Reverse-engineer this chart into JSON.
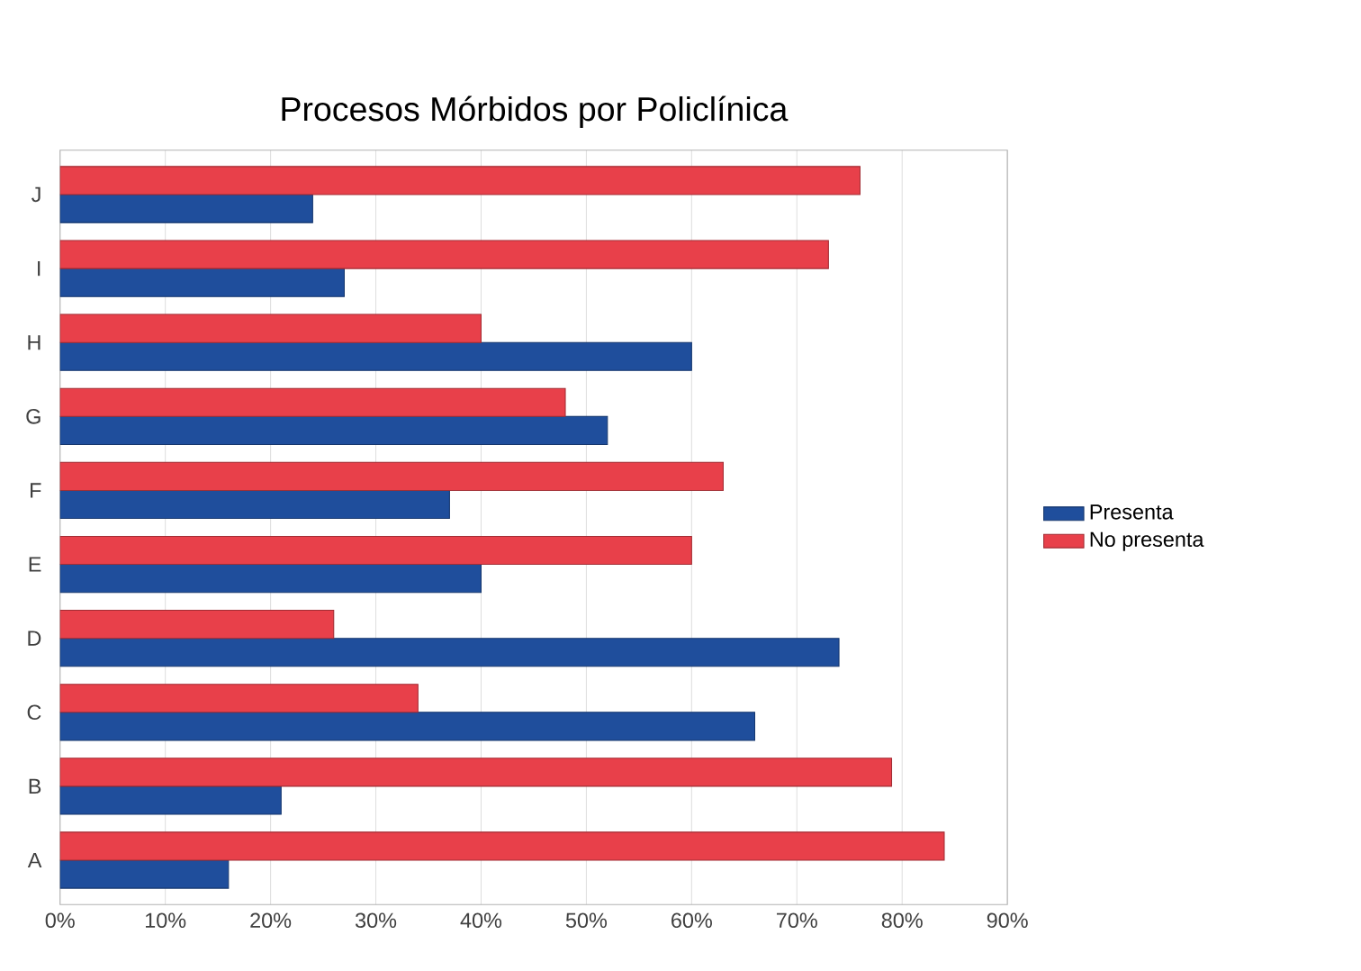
{
  "chart_data": {
    "type": "bar",
    "orientation": "horizontal",
    "title": "Procesos Mórbidos por Policlínica",
    "categories": [
      "J",
      "I",
      "H",
      "G",
      "F",
      "E",
      "D",
      "C",
      "B",
      "A"
    ],
    "series": [
      {
        "name": "Presenta",
        "color": "#1f4e9c",
        "values": [
          24,
          27,
          60,
          52,
          37,
          40,
          74,
          66,
          21,
          16
        ]
      },
      {
        "name": "No presenta",
        "color": "#e8404a",
        "values": [
          76,
          73,
          40,
          48,
          63,
          60,
          26,
          34,
          79,
          84
        ]
      }
    ],
    "xlim": [
      0,
      90
    ],
    "xticks": [
      {
        "value": 0,
        "label": "0%"
      },
      {
        "value": 10,
        "label": "10%"
      },
      {
        "value": 20,
        "label": "20%"
      },
      {
        "value": 30,
        "label": "30%"
      },
      {
        "value": 40,
        "label": "40%"
      },
      {
        "value": 50,
        "label": "50%"
      },
      {
        "value": 60,
        "label": "60%"
      },
      {
        "value": 70,
        "label": "70%"
      },
      {
        "value": 80,
        "label": "80%"
      },
      {
        "value": 90,
        "label": "90%"
      }
    ],
    "grid": "x",
    "legend": "right"
  }
}
